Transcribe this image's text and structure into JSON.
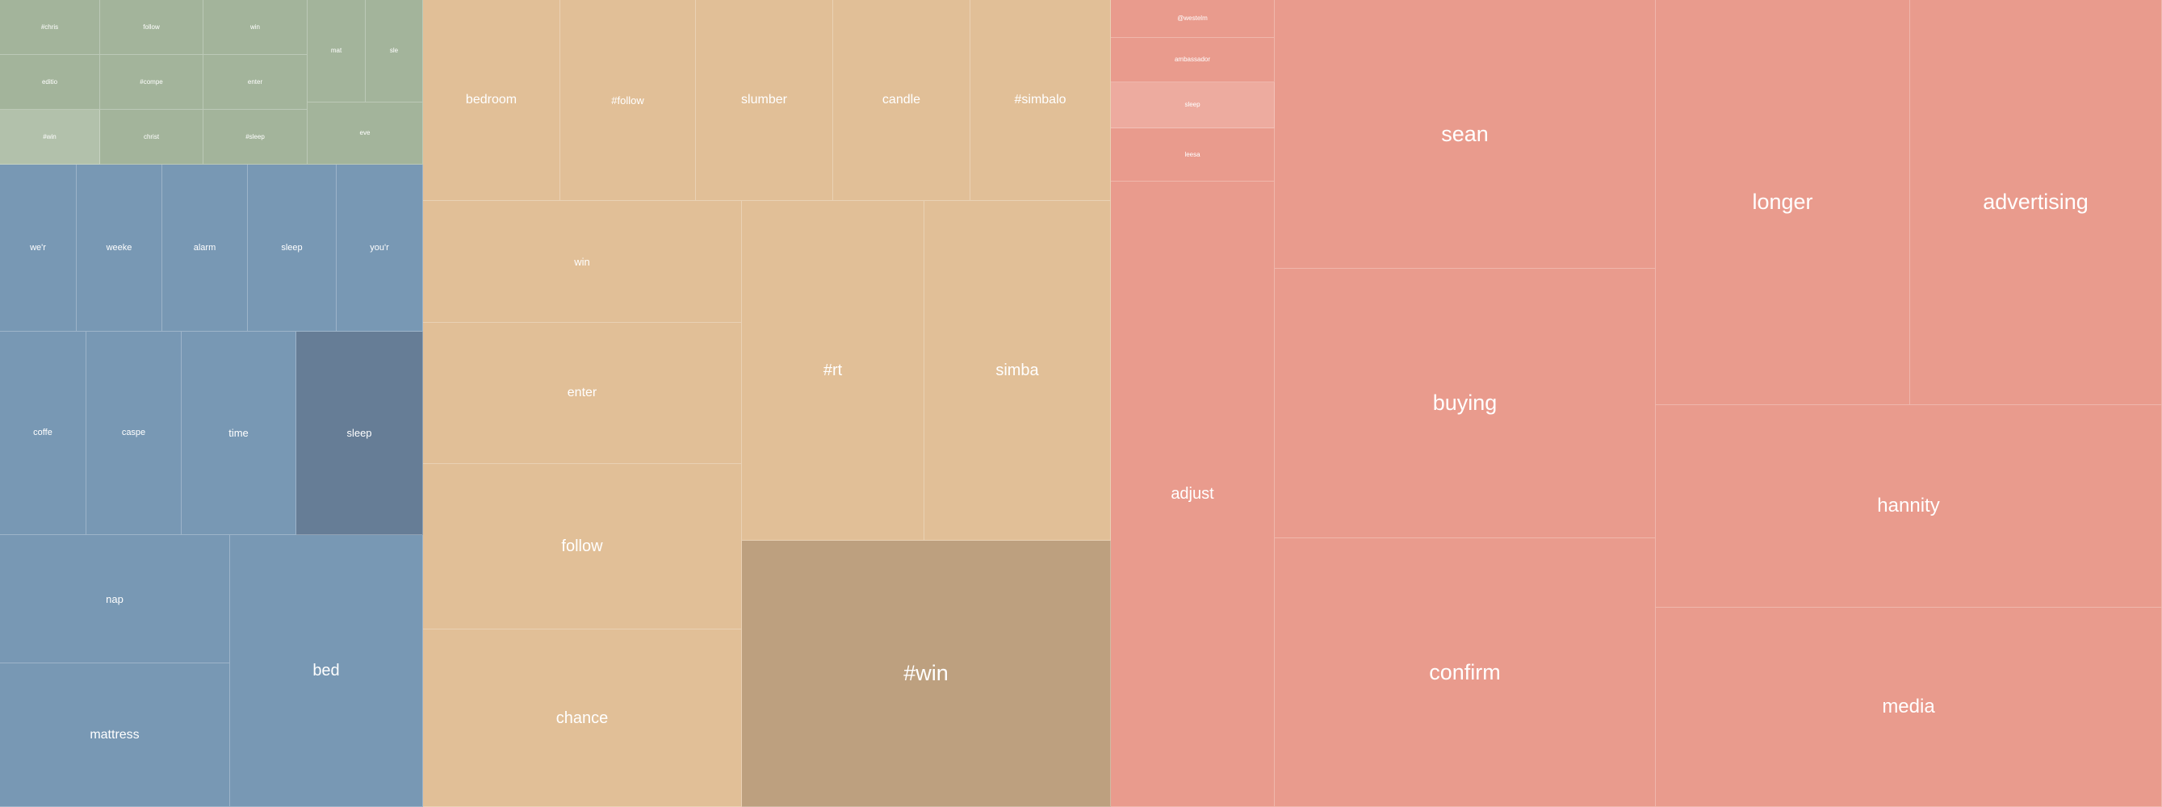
{
  "chart_data": {
    "type": "treemap",
    "groups": [
      {
        "id": "green",
        "color": "#a3b49b",
        "items": [
          {
            "label": "#chris",
            "value": 1
          },
          {
            "label": "follow",
            "value": 1
          },
          {
            "label": "win",
            "value": 1
          },
          {
            "label": "mat",
            "value": 1
          },
          {
            "label": "sle",
            "value": 1
          },
          {
            "label": "editio",
            "value": 1
          },
          {
            "label": "#compe",
            "value": 1
          },
          {
            "label": "enter",
            "value": 1
          },
          {
            "label": "#win",
            "value": 1,
            "highlight": true,
            "color": "#b2c1ab"
          },
          {
            "label": "christ",
            "value": 1
          },
          {
            "label": "#sleep",
            "value": 1
          },
          {
            "label": "eve",
            "value": 1
          }
        ]
      },
      {
        "id": "blue",
        "color": "#7898b4",
        "items": [
          {
            "label": "we'r",
            "value": 1
          },
          {
            "label": "weeke",
            "value": 1
          },
          {
            "label": "alarm",
            "value": 1
          },
          {
            "label": "sleep",
            "value": 1
          },
          {
            "label": "you'r",
            "value": 1
          },
          {
            "label": "coffe",
            "value": 1.2
          },
          {
            "label": "caspe",
            "value": 1.3
          },
          {
            "label": "time",
            "value": 1.6
          },
          {
            "label": "sleep",
            "value": 1.8,
            "highlight": true,
            "color": "#667d96"
          },
          {
            "label": "nap",
            "value": 2.1
          },
          {
            "label": "mattress",
            "value": 2.4
          },
          {
            "label": "bed",
            "value": 3.9
          }
        ]
      },
      {
        "id": "tan",
        "color": "#e1bf97",
        "items": [
          {
            "label": "bedroom",
            "value": 1.4
          },
          {
            "label": "#follow",
            "value": 1.4
          },
          {
            "label": "slumber",
            "value": 1.4
          },
          {
            "label": "candle",
            "value": 1.4
          },
          {
            "label": "#simbalo",
            "value": 1.4
          },
          {
            "label": "win",
            "value": 1.9
          },
          {
            "label": "enter",
            "value": 2.3
          },
          {
            "label": "follow",
            "value": 2.6
          },
          {
            "label": "chance",
            "value": 2.8
          },
          {
            "label": "#rt",
            "value": 3.1
          },
          {
            "label": "simba",
            "value": 3.2
          },
          {
            "label": "#win",
            "value": 4.9,
            "highlight": true,
            "color": "#bda07f"
          }
        ]
      },
      {
        "id": "red",
        "color": "#e99b8d",
        "items": [
          {
            "label": "@westelm",
            "value": 1
          },
          {
            "label": "ambassador",
            "value": 1.1
          },
          {
            "label": "sleep",
            "value": 1.2,
            "highlight": true,
            "color": "#edab9f"
          },
          {
            "label": "leesa",
            "value": 1.3
          },
          {
            "label": "adjust",
            "value": 8.7
          },
          {
            "label": "sean",
            "value": 5.2
          },
          {
            "label": "buying",
            "value": 5.2
          },
          {
            "label": "confirm",
            "value": 5.2
          },
          {
            "label": "longer",
            "value": 5.4
          },
          {
            "label": "advertising",
            "value": 5.4
          },
          {
            "label": "hannity",
            "value": 6.3
          },
          {
            "label": "media",
            "value": 6.2
          }
        ]
      }
    ]
  }
}
